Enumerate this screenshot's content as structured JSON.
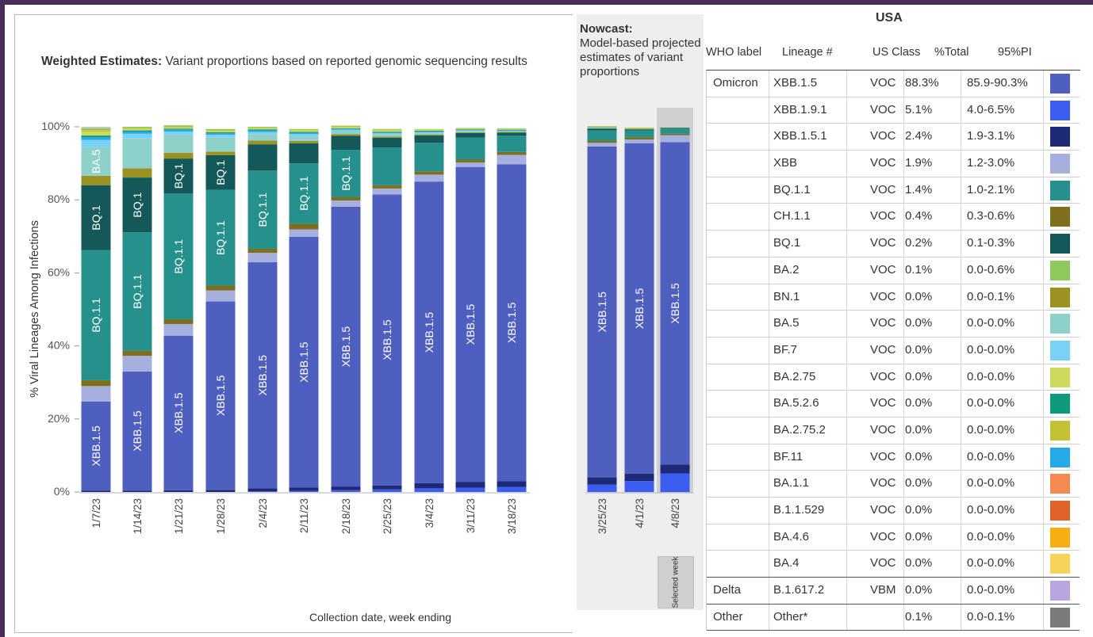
{
  "chart_title": {
    "bold": "Weighted Estimates:",
    "rest": " Variant proportions based on reported genomic sequencing results"
  },
  "nowcast_title": {
    "bold": "Nowcast:",
    "rest": "Model-based projected estimates of variant proportions"
  },
  "selected_week": "Selected week",
  "chart_data": {
    "type": "bar",
    "stacked": true,
    "xlabel": "Collection date, week ending",
    "ylabel": "% Viral Lineages Among Infections",
    "ylim": [
      0,
      100
    ],
    "yticks": [
      "0%",
      "20%",
      "40%",
      "60%",
      "80%",
      "100%"
    ],
    "categories": [
      "1/7/23",
      "1/14/23",
      "1/21/23",
      "1/28/23",
      "2/4/23",
      "2/11/23",
      "2/18/23",
      "2/25/23",
      "3/4/23",
      "3/11/23",
      "3/18/23",
      "3/25/23",
      "4/1/23",
      "4/8/23"
    ],
    "nowcast_categories": [
      "3/25/23",
      "4/1/23",
      "4/8/23"
    ],
    "selected_category": "4/8/23",
    "series": [
      {
        "name": "XBB.1.9.1",
        "color": "#3b5ef0",
        "values": [
          0.0,
          0.0,
          0.0,
          0.0,
          0.2,
          0.3,
          0.5,
          0.7,
          1.0,
          1.2,
          1.4,
          2.0,
          3.0,
          5.1
        ]
      },
      {
        "name": "XBB.1.5.1",
        "color": "#1e2a78",
        "values": [
          0.4,
          0.4,
          0.5,
          0.6,
          0.8,
          0.9,
          1.0,
          1.1,
          1.4,
          1.6,
          1.6,
          2.0,
          2.0,
          2.4
        ]
      },
      {
        "name": "XBB.1.5",
        "color": "#4f5fbf",
        "values": [
          24.4,
          32.6,
          42.3,
          51.6,
          61.9,
          68.7,
          76.6,
          79.7,
          82.6,
          86.2,
          86.7,
          90.6,
          90.5,
          88.3
        ]
      },
      {
        "name": "XBB",
        "color": "#a7afde",
        "values": [
          4.2,
          4.3,
          3.2,
          3.0,
          2.6,
          2.0,
          1.7,
          1.6,
          1.9,
          1.2,
          2.6,
          1.0,
          1.0,
          1.9
        ]
      },
      {
        "name": "CH.1.1",
        "color": "#7d6f1e",
        "values": [
          1.6,
          1.4,
          1.3,
          1.3,
          1.1,
          1.6,
          0.9,
          0.9,
          0.9,
          0.8,
          0.8,
          0.6,
          0.6,
          0.4
        ]
      },
      {
        "name": "BQ.1.1",
        "color": "#26918c",
        "values": [
          35.6,
          32.4,
          34.4,
          26.2,
          21.4,
          16.5,
          13.0,
          10.3,
          7.8,
          6.0,
          4.5,
          2.8,
          1.9,
          1.4
        ]
      },
      {
        "name": "BQ.1",
        "color": "#14585a",
        "values": [
          17.8,
          15.0,
          9.6,
          9.5,
          7.2,
          5.5,
          3.8,
          2.7,
          2.0,
          1.3,
          0.8,
          0.5,
          0.3,
          0.2
        ]
      },
      {
        "name": "BN.1",
        "color": "#9a9223",
        "values": [
          2.6,
          2.5,
          1.6,
          1.0,
          1.0,
          0.6,
          0.5,
          0.3,
          0.3,
          0.2,
          0.2,
          0.1,
          0.1,
          0.0
        ]
      },
      {
        "name": "BA.5",
        "color": "#8ed1cb",
        "values": [
          7.8,
          8.2,
          5.0,
          3.8,
          1.8,
          1.4,
          0.8,
          0.6,
          0.4,
          0.3,
          0.2,
          0.1,
          0.0,
          0.0
        ]
      },
      {
        "name": "BF.7",
        "color": "#79d2f6",
        "values": [
          2.0,
          1.3,
          0.8,
          0.8,
          0.6,
          0.5,
          0.4,
          0.3,
          0.2,
          0.2,
          0.1,
          0.1,
          0.0,
          0.0
        ]
      },
      {
        "name": "BF.11",
        "color": "#26a9e8",
        "values": [
          0.7,
          0.6,
          0.5,
          0.4,
          0.4,
          0.3,
          0.2,
          0.2,
          0.2,
          0.1,
          0.1,
          0.0,
          0.0,
          0.0
        ]
      },
      {
        "name": "BA.5.2.6",
        "color": "#0f9a7c",
        "values": [
          0.5,
          0.3,
          0.3,
          0.3,
          0.3,
          0.3,
          0.2,
          0.2,
          0.2,
          0.2,
          0.2,
          0.1,
          0.1,
          0.0
        ]
      },
      {
        "name": "BA.2.75",
        "color": "#cfd95c",
        "values": [
          1.1,
          0.4,
          0.3,
          0.3,
          0.3,
          0.4,
          0.3,
          0.4,
          0.3,
          0.2,
          0.2,
          0.2,
          0.2,
          0.0
        ]
      },
      {
        "name": "BA.2.75.2",
        "color": "#c2c233",
        "values": [
          0.4,
          0.3,
          0.3,
          0.3,
          0.2,
          0.2,
          0.2,
          0.2,
          0.1,
          0.1,
          0.1,
          0.1,
          0.1,
          0.0
        ]
      },
      {
        "name": "BA.2",
        "color": "#8dc95c",
        "values": [
          0.5,
          0.3,
          0.3,
          0.3,
          0.2,
          0.2,
          0.2,
          0.2,
          0.1,
          0.1,
          0.1,
          0.0,
          0.0,
          0.1
        ]
      },
      {
        "name": "Other*",
        "color": "#c6c6c6",
        "values": [
          0.4,
          0.0,
          0.0,
          0.0,
          0.0,
          0.0,
          0.0,
          0.0,
          0.0,
          0.0,
          0.0,
          0.0,
          0.0,
          0.1
        ]
      }
    ],
    "bar_labels": [
      {
        "bar": "1/7/23",
        "series": "XBB.1.5",
        "text": "XBB.1.5"
      },
      {
        "bar": "1/7/23",
        "series": "BQ.1.1",
        "text": "BQ.1.1"
      },
      {
        "bar": "1/7/23",
        "series": "BQ.1",
        "text": "BQ.1"
      },
      {
        "bar": "1/7/23",
        "series": "BA.5",
        "text": "BA.5"
      },
      {
        "bar": "1/14/23",
        "series": "XBB.1.5",
        "text": "XBB.1.5"
      },
      {
        "bar": "1/14/23",
        "series": "BQ.1.1",
        "text": "BQ.1.1"
      },
      {
        "bar": "1/14/23",
        "series": "BQ.1",
        "text": "BQ.1"
      },
      {
        "bar": "1/21/23",
        "series": "XBB.1.5",
        "text": "XBB.1.5"
      },
      {
        "bar": "1/21/23",
        "series": "BQ.1.1",
        "text": "BQ.1.1"
      },
      {
        "bar": "1/21/23",
        "series": "BQ.1",
        "text": "BQ.1"
      },
      {
        "bar": "1/28/23",
        "series": "XBB.1.5",
        "text": "XBB.1.5"
      },
      {
        "bar": "1/28/23",
        "series": "BQ.1.1",
        "text": "BQ.1.1"
      },
      {
        "bar": "1/28/23",
        "series": "BQ.1",
        "text": "BQ.1"
      },
      {
        "bar": "2/4/23",
        "series": "XBB.1.5",
        "text": "XBB.1.5"
      },
      {
        "bar": "2/4/23",
        "series": "BQ.1.1",
        "text": "BQ.1.1"
      },
      {
        "bar": "2/11/23",
        "series": "XBB.1.5",
        "text": "XBB.1.5"
      },
      {
        "bar": "2/11/23",
        "series": "BQ.1.1",
        "text": "BQ.1.1"
      },
      {
        "bar": "2/18/23",
        "series": "XBB.1.5",
        "text": "XBB.1.5"
      },
      {
        "bar": "2/18/23",
        "series": "BQ.1.1",
        "text": "BQ.1.1"
      },
      {
        "bar": "2/25/23",
        "series": "XBB.1.5",
        "text": "XBB.1.5"
      },
      {
        "bar": "3/4/23",
        "series": "XBB.1.5",
        "text": "XBB.1.5"
      },
      {
        "bar": "3/11/23",
        "series": "XBB.1.5",
        "text": "XBB.1.5"
      },
      {
        "bar": "3/18/23",
        "series": "XBB.1.5",
        "text": "XBB.1.5"
      },
      {
        "bar": "3/25/23",
        "series": "XBB.1.5",
        "text": "XBB.1.5"
      },
      {
        "bar": "4/1/23",
        "series": "XBB.1.5",
        "text": "XBB.1.5"
      },
      {
        "bar": "4/8/23",
        "series": "XBB.1.5",
        "text": "XBB.1.5"
      }
    ]
  },
  "table": {
    "region": "USA",
    "headers": [
      "WHO label",
      "Lineage #",
      "US Class",
      "%Total",
      "95%PI"
    ],
    "groups": [
      {
        "who": "Omicron",
        "rows": [
          {
            "lineage": "XBB.1.5",
            "class": "VOC",
            "total": "88.3%",
            "pi": "85.9-90.3%",
            "color": "#4f5fbf"
          },
          {
            "lineage": "XBB.1.9.1",
            "class": "VOC",
            "total": "5.1%",
            "pi": "4.0-6.5%",
            "color": "#3b5ef0"
          },
          {
            "lineage": "XBB.1.5.1",
            "class": "VOC",
            "total": "2.4%",
            "pi": "1.9-3.1%",
            "color": "#1e2a78"
          },
          {
            "lineage": "XBB",
            "class": "VOC",
            "total": "1.9%",
            "pi": "1.2-3.0%",
            "color": "#a7afde"
          },
          {
            "lineage": "BQ.1.1",
            "class": "VOC",
            "total": "1.4%",
            "pi": "1.0-2.1%",
            "color": "#26918c"
          },
          {
            "lineage": "CH.1.1",
            "class": "VOC",
            "total": "0.4%",
            "pi": "0.3-0.6%",
            "color": "#7d6f1e"
          },
          {
            "lineage": "BQ.1",
            "class": "VOC",
            "total": "0.2%",
            "pi": "0.1-0.3%",
            "color": "#14585a"
          },
          {
            "lineage": "BA.2",
            "class": "VOC",
            "total": "0.1%",
            "pi": "0.0-0.6%",
            "color": "#8dc95c"
          },
          {
            "lineage": "BN.1",
            "class": "VOC",
            "total": "0.0%",
            "pi": "0.0-0.1%",
            "color": "#9a9223"
          },
          {
            "lineage": "BA.5",
            "class": "VOC",
            "total": "0.0%",
            "pi": "0.0-0.0%",
            "color": "#8ed1cb"
          },
          {
            "lineage": "BF.7",
            "class": "VOC",
            "total": "0.0%",
            "pi": "0.0-0.0%",
            "color": "#79d2f6"
          },
          {
            "lineage": "BA.2.75",
            "class": "VOC",
            "total": "0.0%",
            "pi": "0.0-0.0%",
            "color": "#cfd95c"
          },
          {
            "lineage": "BA.5.2.6",
            "class": "VOC",
            "total": "0.0%",
            "pi": "0.0-0.0%",
            "color": "#0f9a7c"
          },
          {
            "lineage": "BA.2.75.2",
            "class": "VOC",
            "total": "0.0%",
            "pi": "0.0-0.0%",
            "color": "#c2c233"
          },
          {
            "lineage": "BF.11",
            "class": "VOC",
            "total": "0.0%",
            "pi": "0.0-0.0%",
            "color": "#26a9e8"
          },
          {
            "lineage": "BA.1.1",
            "class": "VOC",
            "total": "0.0%",
            "pi": "0.0-0.0%",
            "color": "#f28a52"
          },
          {
            "lineage": "B.1.1.529",
            "class": "VOC",
            "total": "0.0%",
            "pi": "0.0-0.0%",
            "color": "#e0622b"
          },
          {
            "lineage": "BA.4.6",
            "class": "VOC",
            "total": "0.0%",
            "pi": "0.0-0.0%",
            "color": "#f6ae12"
          },
          {
            "lineage": "BA.4",
            "class": "VOC",
            "total": "0.0%",
            "pi": "0.0-0.0%",
            "color": "#f8d35c"
          }
        ]
      },
      {
        "who": "Delta",
        "rows": [
          {
            "lineage": "B.1.617.2",
            "class": "VBM",
            "total": "0.0%",
            "pi": "0.0-0.0%",
            "color": "#b7a6df"
          }
        ]
      },
      {
        "who": "Other",
        "rows": [
          {
            "lineage": "Other*",
            "class": "",
            "total": "0.1%",
            "pi": "0.0-0.1%",
            "color": "#7a7a7a"
          }
        ]
      }
    ]
  }
}
